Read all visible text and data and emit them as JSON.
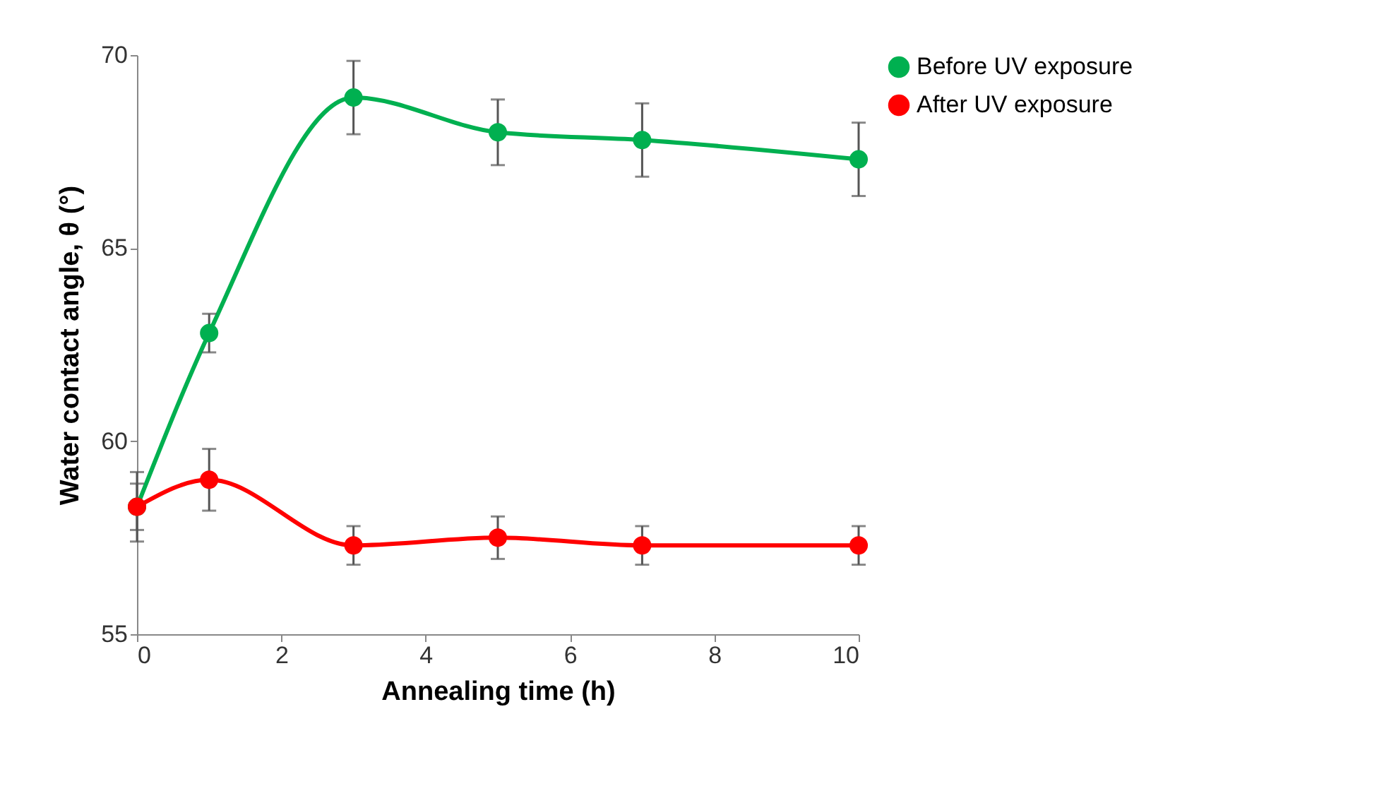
{
  "chart_data": {
    "type": "line",
    "xlabel": "Annealing time (h)",
    "ylabel": "Water contact angle, θ (°)",
    "x": [
      0,
      1,
      3,
      5,
      7,
      10
    ],
    "series": [
      {
        "name": "Before UV exposure",
        "color": "#00b050",
        "values": [
          58.3,
          62.8,
          68.9,
          68.0,
          67.8,
          67.3
        ],
        "errors": [
          0.9,
          0.5,
          0.95,
          0.85,
          0.95,
          0.95
        ]
      },
      {
        "name": "After UV exposure",
        "color": "#ff0000",
        "values": [
          58.3,
          59.0,
          57.3,
          57.5,
          57.3,
          57.3
        ],
        "errors": [
          0.6,
          0.8,
          0.5,
          0.55,
          0.5,
          0.5
        ]
      }
    ],
    "xlim": [
      0,
      10
    ],
    "xticks": [
      0,
      2,
      4,
      6,
      8,
      10
    ],
    "ylim": [
      55,
      70
    ],
    "yticks": [
      55,
      60,
      65,
      70
    ],
    "grid": false,
    "legend": "right",
    "marker": "circle",
    "line_style": "solid"
  }
}
